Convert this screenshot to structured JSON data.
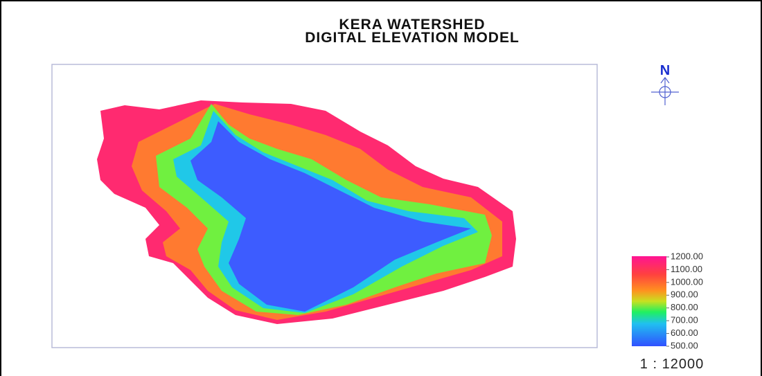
{
  "header": {
    "title_lines": [
      "KERA WATERSHED",
      "DIGITAL ELEVATION MODEL"
    ]
  },
  "north": "N",
  "legend": {
    "labels": [
      "1200.00",
      "1100.00",
      "1000.00",
      "900.00",
      "800.00",
      "700.00",
      "600.00",
      "500.00"
    ]
  },
  "scale": "1 : 12000"
}
